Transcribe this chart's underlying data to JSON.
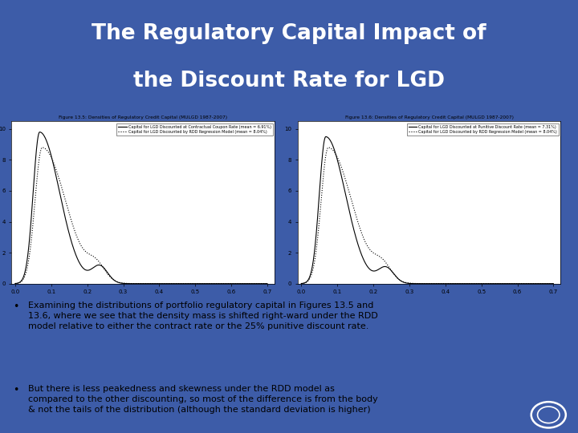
{
  "title_line1": "The Regulatory Capital Impact of",
  "title_line2": "the Discount Rate for LGD",
  "title_bg_color": "#2b4b8c",
  "title_text_color": "#ffffff",
  "slide_bg_color": "#3d5ca8",
  "fig13_5_title": "Figure 13.5: Densities of Regulatory Credit Capital (MULGD 1987-2007)",
  "fig13_6_title": "Figure 13.6: Densities of Regulatory Credit Capital (MULGD 1987-2007)",
  "fig13_5_legend1": "Capital for LGD Discounted at Contractual Coupon Rate (mean = 6.91%)",
  "fig13_5_legend2": "Capital for LGD Discounted by RDD Regression Model (mean = 8.04%)",
  "fig13_6_legend1": "Capital for LGD Discounted at Punitive Discount Rate (mean = 7.31%)",
  "fig13_6_legend2": "Capital for LGD Discounted by RDD Regression Model (mean = 8.04%)",
  "bullet1": "Examining the distributions of portfolio regulatory capital in Figures 13.5 and\n13.6, where we see that the density mass is shifted right-ward under the RDD\nmodel relative to either the contract rate or the 25% punitive discount rate.",
  "bullet2": "But there is less peakedness and skewness under the RDD model as\ncompared to the other discounting, so most of the difference is from the body\n& not the tails of the distribution (although the standard deviation is higher)",
  "bullet_text_color": "#000000",
  "bullet_bg_color": "#c8d0e0",
  "xticks": [
    0.0,
    0.1,
    0.2,
    0.3,
    0.4,
    0.5,
    0.6,
    0.7
  ],
  "yticks": [
    0,
    2,
    4,
    6,
    8,
    10
  ],
  "ylim": [
    0,
    10.5
  ],
  "xlim": [
    -0.01,
    0.72
  ]
}
